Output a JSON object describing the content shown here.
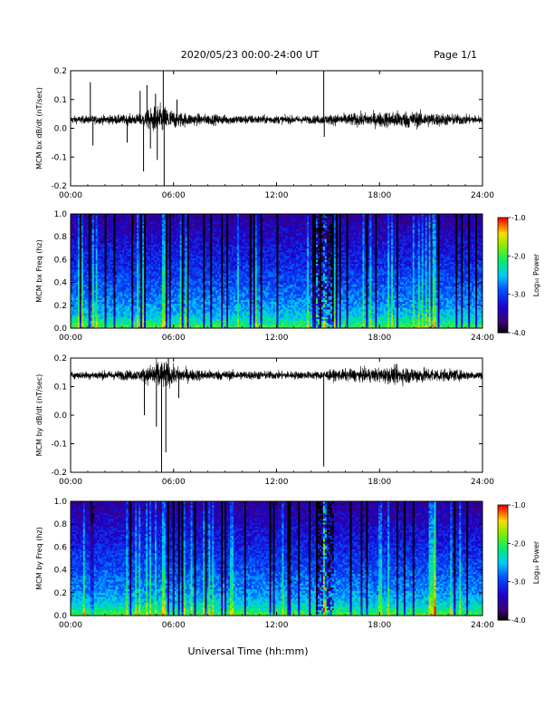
{
  "header": {
    "date_range": "2020/05/23  00:00-24:00 UT",
    "page": "Page 1/1"
  },
  "footer": {
    "xlabel": "Universal Time (hh:mm)"
  },
  "time_ticks": [
    "00:00",
    "06:00",
    "12:00",
    "18:00",
    "24:00"
  ],
  "chart_data": [
    {
      "type": "line",
      "ylabel": "MCM bx dB/dt (nT/sec)",
      "xlim": [
        0,
        24
      ],
      "ylim": [
        -0.2,
        0.2
      ],
      "yticks": [
        "-0.2",
        "-0.1",
        "0.0",
        "0.1",
        "0.2"
      ],
      "baseline": 0.03,
      "noise_profile": [
        [
          0,
          0.012
        ],
        [
          1,
          0.013
        ],
        [
          2,
          0.015
        ],
        [
          3,
          0.016
        ],
        [
          4,
          0.018
        ],
        [
          4.5,
          0.03
        ],
        [
          5,
          0.05
        ],
        [
          5.5,
          0.045
        ],
        [
          6,
          0.03
        ],
        [
          7,
          0.02
        ],
        [
          9,
          0.016
        ],
        [
          12,
          0.014
        ],
        [
          14,
          0.013
        ],
        [
          15,
          0.017
        ],
        [
          16,
          0.02
        ],
        [
          18,
          0.025
        ],
        [
          19,
          0.03
        ],
        [
          20,
          0.028
        ],
        [
          22,
          0.02
        ],
        [
          24,
          0.013
        ]
      ],
      "spikes": [
        [
          1.15,
          0.16
        ],
        [
          1.3,
          -0.06
        ],
        [
          3.3,
          -0.05
        ],
        [
          4.05,
          0.13
        ],
        [
          4.25,
          -0.15
        ],
        [
          4.45,
          0.15
        ],
        [
          4.65,
          -0.07
        ],
        [
          4.95,
          0.12
        ],
        [
          5.05,
          -0.11
        ],
        [
          5.4,
          0.2
        ],
        [
          5.45,
          -0.2
        ],
        [
          6.2,
          0.1
        ],
        [
          14.75,
          0.2
        ],
        [
          14.78,
          -0.03
        ]
      ]
    },
    {
      "type": "heatmap",
      "ylabel": "MCM bx Freq (hz)",
      "xlim": [
        0,
        24
      ],
      "ylim": [
        0,
        1
      ],
      "yticks": [
        "0.0",
        "0.2",
        "0.4",
        "0.6",
        "0.8",
        "1.0"
      ],
      "colorbar": {
        "label": "Log₁₀ Power",
        "range": [
          -4.0,
          -1.0
        ],
        "ticks": [
          "-1.0",
          "-2.0",
          "-3.0",
          "-4.0"
        ]
      },
      "bright_bands_hours": [
        1.2,
        5.4,
        14.75,
        20.9,
        21.1
      ]
    },
    {
      "type": "line",
      "ylabel": "MCM by dB/dt (nT/sec)",
      "xlim": [
        0,
        24
      ],
      "ylim": [
        -0.2,
        0.2
      ],
      "yticks": [
        "-0.2",
        "-0.1",
        "0.0",
        "0.1",
        "0.2"
      ],
      "baseline": 0.14,
      "noise_profile": [
        [
          0,
          0.012
        ],
        [
          1,
          0.013
        ],
        [
          2,
          0.015
        ],
        [
          3,
          0.016
        ],
        [
          4,
          0.018
        ],
        [
          4.5,
          0.03
        ],
        [
          5,
          0.05
        ],
        [
          5.5,
          0.045
        ],
        [
          6,
          0.03
        ],
        [
          7,
          0.02
        ],
        [
          9,
          0.016
        ],
        [
          12,
          0.014
        ],
        [
          14,
          0.013
        ],
        [
          15,
          0.017
        ],
        [
          16,
          0.02
        ],
        [
          18,
          0.025
        ],
        [
          19,
          0.03
        ],
        [
          20,
          0.028
        ],
        [
          22,
          0.02
        ],
        [
          24,
          0.013
        ]
      ],
      "spikes": [
        [
          4.3,
          0.0
        ],
        [
          5.0,
          -0.04
        ],
        [
          5.3,
          -0.2
        ],
        [
          5.55,
          -0.13
        ],
        [
          5.7,
          0.2
        ],
        [
          6.3,
          0.06
        ],
        [
          14.75,
          -0.18
        ]
      ]
    },
    {
      "type": "heatmap",
      "ylabel": "MCM by Freq (hz)",
      "xlim": [
        0,
        24
      ],
      "ylim": [
        0,
        1
      ],
      "yticks": [
        "0.0",
        "0.2",
        "0.4",
        "0.6",
        "0.8",
        "1.0"
      ],
      "colorbar": {
        "label": "Log₁₀ Power",
        "range": [
          -4.0,
          -1.0
        ],
        "ticks": [
          "-1.0",
          "-2.0",
          "-3.0",
          "-4.0"
        ]
      },
      "bright_bands_hours": [
        1.2,
        5.4,
        14.75,
        20.9,
        21.1
      ]
    }
  ]
}
